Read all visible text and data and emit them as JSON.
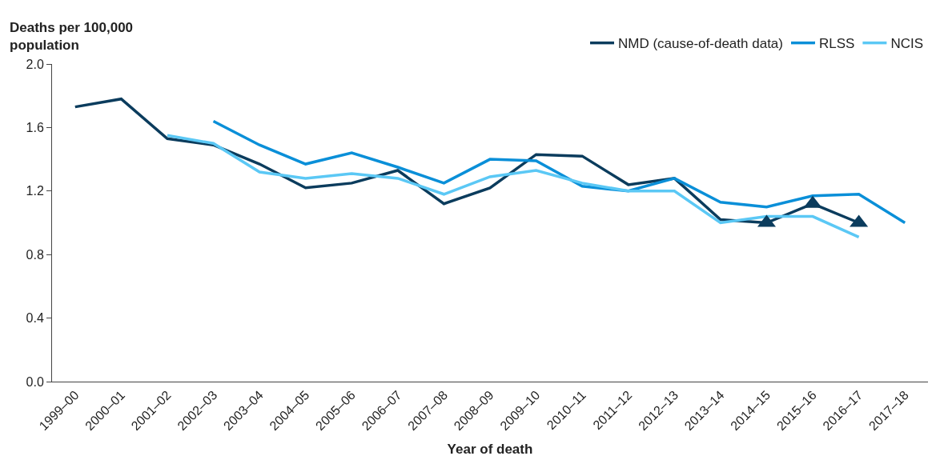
{
  "chart_data": {
    "type": "line",
    "xlabel": "Year of death",
    "ylabel": "Deaths per 100,000\npopulation",
    "categories": [
      "1999–00",
      "2000–01",
      "2001–02",
      "2002–03",
      "2003–04",
      "2004–05",
      "2005–06",
      "2006–07",
      "2007–08",
      "2008–09",
      "2009–10",
      "2010–11",
      "2011–12",
      "2012–13",
      "2013–14",
      "2014–15",
      "2015–16",
      "2016–17",
      "2017–18"
    ],
    "series": [
      {
        "name": "NMD (cause-of-death data)",
        "color": "#0b3c5d",
        "values": [
          1.73,
          1.78,
          1.53,
          1.49,
          1.37,
          1.22,
          1.25,
          1.33,
          1.12,
          1.22,
          1.43,
          1.42,
          1.24,
          1.28,
          1.02,
          1.0,
          1.12,
          1.0,
          null
        ]
      },
      {
        "name": "RLSS",
        "color": "#0a8fd8",
        "values": [
          null,
          null,
          null,
          1.64,
          1.49,
          1.37,
          1.44,
          1.35,
          1.25,
          1.4,
          1.39,
          1.23,
          1.2,
          1.28,
          1.13,
          1.1,
          1.17,
          1.18,
          1.0
        ]
      },
      {
        "name": "NCIS",
        "color": "#5bc8f5",
        "values": [
          null,
          null,
          1.55,
          1.5,
          1.32,
          1.28,
          1.31,
          1.28,
          1.18,
          1.29,
          1.33,
          1.25,
          1.2,
          1.2,
          1.0,
          1.04,
          1.04,
          0.91,
          null
        ]
      },
      {
        "type": "scatter",
        "marker": "triangle",
        "color": "#0b3c5d",
        "x": [
          "2014–15",
          "2015–16",
          "2016–17"
        ],
        "values": [
          1.0,
          1.12,
          1.0
        ]
      }
    ],
    "ylim": [
      0,
      2.0
    ],
    "yticks": [
      {
        "value": 0,
        "label": "0.0"
      },
      0.4,
      0.8,
      1.2,
      1.6,
      {
        "value": 2,
        "label": "2.0"
      }
    ],
    "legend": "top right",
    "marker": "none",
    "line_style": "solid"
  }
}
